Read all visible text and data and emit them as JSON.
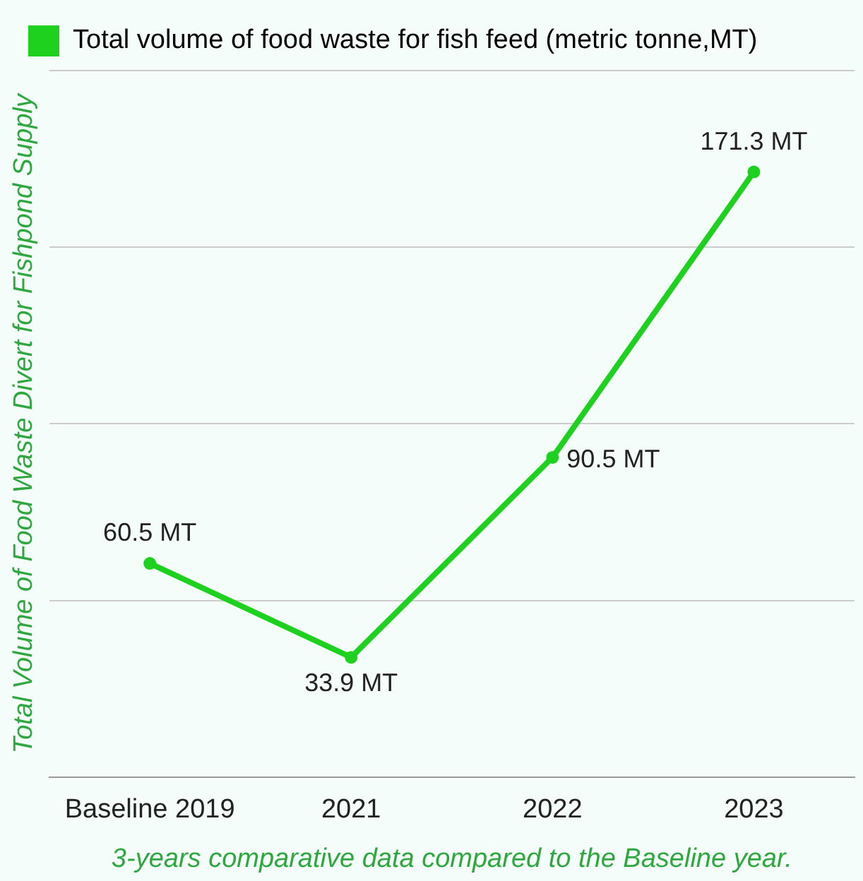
{
  "chart_data": {
    "type": "line",
    "xlabel": "3-years comparative data compared to the Baseline year.",
    "ylabel": "Total Volume of Food Waste Divert for Fishpond Supply",
    "categories": [
      "Baseline 2019",
      "2021",
      "2022",
      "2023"
    ],
    "series": [
      {
        "name": "Total volume of food waste for fish feed (metric tonne,MT)",
        "color": "#1fd11f",
        "values": [
          60.5,
          33.9,
          90.5,
          171.3
        ],
        "value_labels": [
          "60.5 MT",
          "33.9 MT",
          "90.5 MT",
          "171.3 MT"
        ]
      }
    ],
    "ylim": [
      0,
      200
    ],
    "yticks": [
      0,
      50,
      100,
      150,
      200
    ],
    "tick_labels": "x",
    "grid": "y",
    "legend": "top left",
    "marker": "circle",
    "line_style": "solid"
  }
}
